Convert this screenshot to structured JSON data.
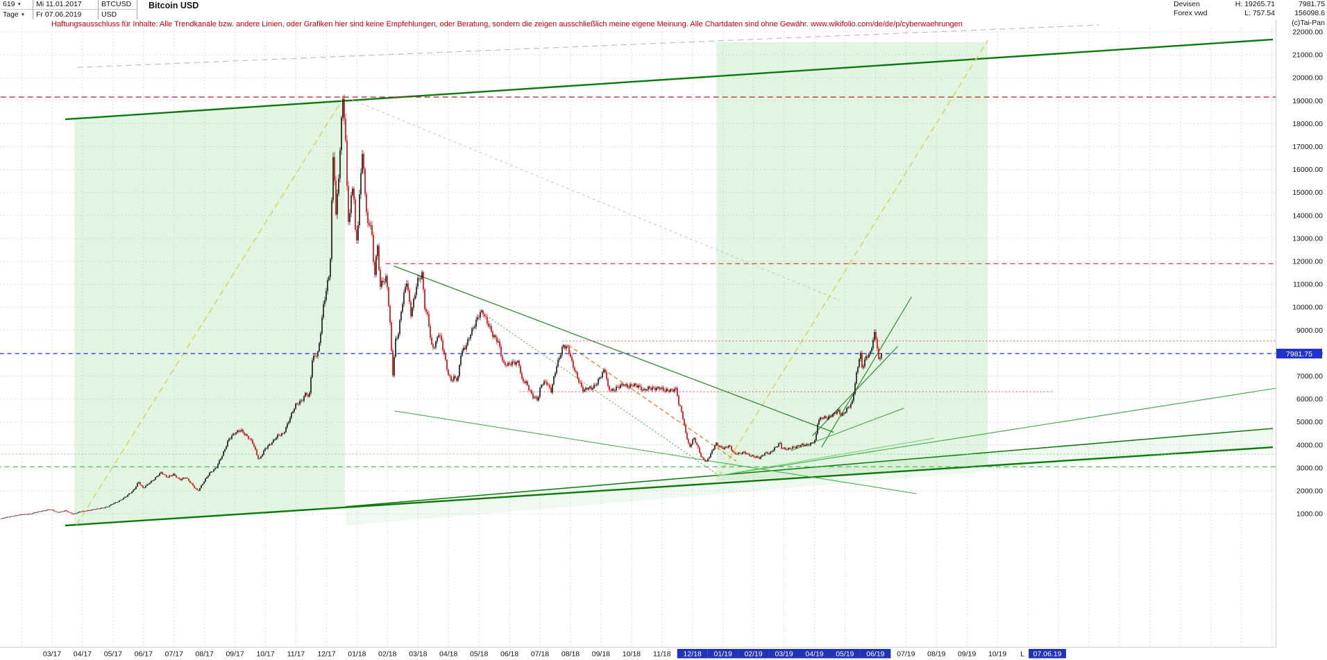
{
  "header": {
    "bar_count": "619",
    "start_day": "Mi 11.01.2017",
    "symbol": "BTCUSD",
    "title": "Bitcoin USD",
    "period": "Tage",
    "end_day": "Fr 07.06.2019",
    "currency": "USD",
    "category": "Devisen",
    "source": "Forex vwd",
    "high_label": "H: 19265.71",
    "low_label": "L: 757.54",
    "last_price": "7981.75",
    "volume": "156098.6",
    "copyright": "(c)Tai-Pan"
  },
  "disclaimer": "Haftungsausschluss für Inhalte: Alle Trendkanäle bzw. andere Linien, oder Grafiken hier sind keine Empfehlungen, oder Beratung, sondern die zeigen ausschließlich meine eigene Meinung. Alle Chartdaten sind ohne Gewähr.  www.wikifolio.com/de/de/p/cyberwaehrungen",
  "axis": {
    "x_labels": [
      {
        "label": "03/17",
        "hl": false
      },
      {
        "label": "04/17",
        "hl": false
      },
      {
        "label": "05/17",
        "hl": false
      },
      {
        "label": "06/17",
        "hl": false
      },
      {
        "label": "07/17",
        "hl": false
      },
      {
        "label": "08/17",
        "hl": false
      },
      {
        "label": "09/17",
        "hl": false
      },
      {
        "label": "10/17",
        "hl": false
      },
      {
        "label": "11/17",
        "hl": false
      },
      {
        "label": "12/17",
        "hl": false
      },
      {
        "label": "01/18",
        "hl": false
      },
      {
        "label": "02/18",
        "hl": false
      },
      {
        "label": "03/18",
        "hl": false
      },
      {
        "label": "04/18",
        "hl": false
      },
      {
        "label": "05/18",
        "hl": false
      },
      {
        "label": "06/18",
        "hl": false
      },
      {
        "label": "07/18",
        "hl": false
      },
      {
        "label": "08/18",
        "hl": false
      },
      {
        "label": "09/18",
        "hl": false
      },
      {
        "label": "10/18",
        "hl": false
      },
      {
        "label": "11/18",
        "hl": false
      },
      {
        "label": "12/18",
        "hl": true
      },
      {
        "label": "01/19",
        "hl": true
      },
      {
        "label": "02/19",
        "hl": true
      },
      {
        "label": "03/19",
        "hl": true
      },
      {
        "label": "04/19",
        "hl": true
      },
      {
        "label": "05/19",
        "hl": true
      },
      {
        "label": "06/19",
        "hl": true
      },
      {
        "label": "07/19",
        "hl": false
      },
      {
        "label": "08/19",
        "hl": false
      },
      {
        "label": "09/19",
        "hl": false
      },
      {
        "label": "10/19",
        "hl": false
      }
    ],
    "last_marker": {
      "prefix": "L",
      "date": "07.06.19"
    },
    "y_ticks": [
      22000,
      21000,
      20000,
      19000,
      18000,
      17000,
      16000,
      15000,
      14000,
      13000,
      12000,
      11000,
      10000,
      9000,
      8000,
      7000,
      6000,
      5000,
      4000,
      3000,
      2000,
      1000
    ],
    "price_badge": "7981.75"
  },
  "chart_data": {
    "type": "candlestick",
    "title": "Bitcoin USD",
    "symbol": "BTCUSD",
    "timeframe": "Tage (daily)",
    "x_range": {
      "start": "11.01.2017",
      "end": "07.06.2019",
      "bars": 619
    },
    "y_range": {
      "min_label": 1000,
      "max_label": 22000,
      "tick_step": 1000
    },
    "period_high": 19265.71,
    "period_low": 757.54,
    "last_close": 7981.75,
    "volume": 156098.6,
    "price_path_t_months_price_usd": [
      [
        0,
        790
      ],
      [
        0.35,
        900
      ],
      [
        0.7,
        965
      ],
      [
        1.0,
        1010
      ],
      [
        1.35,
        1130
      ],
      [
        1.6,
        1190
      ],
      [
        1.85,
        1060
      ],
      [
        2.1,
        1130
      ],
      [
        2.35,
        990
      ],
      [
        2.6,
        1090
      ],
      [
        2.9,
        1160
      ],
      [
        3.2,
        1220
      ],
      [
        3.5,
        1320
      ],
      [
        3.8,
        1520
      ],
      [
        4.1,
        1750
      ],
      [
        4.35,
        2050
      ],
      [
        4.5,
        2400
      ],
      [
        4.65,
        2100
      ],
      [
        4.85,
        2350
      ],
      [
        5.05,
        2550
      ],
      [
        5.25,
        2800
      ],
      [
        5.45,
        2600
      ],
      [
        5.65,
        2700
      ],
      [
        5.85,
        2500
      ],
      [
        6.05,
        2580
      ],
      [
        6.25,
        2280
      ],
      [
        6.45,
        1990
      ],
      [
        6.65,
        2400
      ],
      [
        6.85,
        2820
      ],
      [
        7.05,
        3000
      ],
      [
        7.25,
        3550
      ],
      [
        7.45,
        4250
      ],
      [
        7.65,
        4480
      ],
      [
        7.85,
        4680
      ],
      [
        8.05,
        4380
      ],
      [
        8.25,
        4080
      ],
      [
        8.45,
        3350
      ],
      [
        8.65,
        3800
      ],
      [
        8.85,
        4100
      ],
      [
        9.05,
        4380
      ],
      [
        9.25,
        4480
      ],
      [
        9.45,
        5150
      ],
      [
        9.65,
        5700
      ],
      [
        9.85,
        5950
      ],
      [
        10.0,
        6300
      ],
      [
        10.1,
        6000
      ],
      [
        10.2,
        7700
      ],
      [
        10.4,
        8100
      ],
      [
        10.55,
        9900
      ],
      [
        10.7,
        11000
      ],
      [
        10.78,
        11600
      ],
      [
        10.83,
        14000
      ],
      [
        10.87,
        16800
      ],
      [
        10.92,
        16200
      ],
      [
        10.97,
        13900
      ],
      [
        11.1,
        16400
      ],
      [
        11.2,
        19200
      ],
      [
        11.28,
        17600
      ],
      [
        11.38,
        13900
      ],
      [
        11.45,
        14100
      ],
      [
        11.5,
        15700
      ],
      [
        11.57,
        14500
      ],
      [
        11.63,
        12700
      ],
      [
        11.7,
        13400
      ],
      [
        11.83,
        17000
      ],
      [
        11.93,
        15100
      ],
      [
        12.03,
        13400
      ],
      [
        12.13,
        13700
      ],
      [
        12.23,
        11200
      ],
      [
        12.33,
        12800
      ],
      [
        12.43,
        11000
      ],
      [
        12.53,
        11150
      ],
      [
        12.63,
        11200
      ],
      [
        12.7,
        10200
      ],
      [
        12.77,
        8900
      ],
      [
        12.83,
        6950
      ],
      [
        12.93,
        8600
      ],
      [
        13.03,
        8900
      ],
      [
        13.13,
        9950
      ],
      [
        13.3,
        11200
      ],
      [
        13.43,
        9750
      ],
      [
        13.53,
        10300
      ],
      [
        13.63,
        11000
      ],
      [
        13.8,
        11450
      ],
      [
        13.9,
        9900
      ],
      [
        14.0,
        9600
      ],
      [
        14.1,
        8250
      ],
      [
        14.23,
        8250
      ],
      [
        14.33,
        8950
      ],
      [
        14.43,
        8600
      ],
      [
        14.53,
        7900
      ],
      [
        14.67,
        6950
      ],
      [
        14.77,
        6800
      ],
      [
        14.87,
        7000
      ],
      [
        14.97,
        6850
      ],
      [
        15.07,
        7950
      ],
      [
        15.23,
        8250
      ],
      [
        15.4,
        8950
      ],
      [
        15.57,
        9350
      ],
      [
        15.7,
        9700
      ],
      [
        15.8,
        9800
      ],
      [
        15.97,
        9300
      ],
      [
        16.13,
        8700
      ],
      [
        16.3,
        8500
      ],
      [
        16.47,
        7550
      ],
      [
        16.63,
        7450
      ],
      [
        16.8,
        7600
      ],
      [
        16.97,
        7650
      ],
      [
        17.07,
        6800
      ],
      [
        17.23,
        6650
      ],
      [
        17.43,
        6150
      ],
      [
        17.6,
        5950
      ],
      [
        17.7,
        6600
      ],
      [
        17.87,
        6800
      ],
      [
        18.03,
        6350
      ],
      [
        18.2,
        7350
      ],
      [
        18.43,
        8400
      ],
      [
        18.6,
        8150
      ],
      [
        18.7,
        7600
      ],
      [
        18.87,
        7050
      ],
      [
        19.1,
        6300
      ],
      [
        19.2,
        6450
      ],
      [
        19.37,
        6500
      ],
      [
        19.53,
        6700
      ],
      [
        19.7,
        7050
      ],
      [
        19.8,
        7300
      ],
      [
        19.9,
        6500
      ],
      [
        20.07,
        6350
      ],
      [
        20.23,
        6500
      ],
      [
        20.4,
        6700
      ],
      [
        20.57,
        6500
      ],
      [
        20.73,
        6600
      ],
      [
        20.9,
        6600
      ],
      [
        21.07,
        6350
      ],
      [
        21.23,
        6450
      ],
      [
        21.4,
        6500
      ],
      [
        21.57,
        6480
      ],
      [
        21.73,
        6350
      ],
      [
        21.9,
        6420
      ],
      [
        22.07,
        6400
      ],
      [
        22.15,
        6380
      ],
      [
        22.22,
        5700
      ],
      [
        22.3,
        5550
      ],
      [
        22.43,
        4650
      ],
      [
        22.57,
        3850
      ],
      [
        22.7,
        4300
      ],
      [
        22.83,
        3950
      ],
      [
        22.97,
        3450
      ],
      [
        23.13,
        3250
      ],
      [
        23.3,
        3700
      ],
      [
        23.43,
        4100
      ],
      [
        23.57,
        3900
      ],
      [
        23.7,
        3820
      ],
      [
        23.87,
        4000
      ],
      [
        24.03,
        3620
      ],
      [
        24.2,
        3600
      ],
      [
        24.37,
        3700
      ],
      [
        24.53,
        3560
      ],
      [
        24.7,
        3460
      ],
      [
        24.87,
        3450
      ],
      [
        25.03,
        3650
      ],
      [
        25.2,
        3600
      ],
      [
        25.37,
        3900
      ],
      [
        25.53,
        4100
      ],
      [
        25.6,
        3820
      ],
      [
        25.77,
        3810
      ],
      [
        25.93,
        3900
      ],
      [
        26.1,
        3920
      ],
      [
        26.27,
        4000
      ],
      [
        26.43,
        4010
      ],
      [
        26.6,
        4080
      ],
      [
        26.7,
        4180
      ],
      [
        26.78,
        5050
      ],
      [
        26.93,
        5250
      ],
      [
        27.1,
        5150
      ],
      [
        27.27,
        5300
      ],
      [
        27.43,
        5550
      ],
      [
        27.57,
        5250
      ],
      [
        27.73,
        5550
      ],
      [
        27.9,
        5850
      ],
      [
        28.03,
        7000
      ],
      [
        28.17,
        8000
      ],
      [
        28.23,
        7300
      ],
      [
        28.37,
        7900
      ],
      [
        28.5,
        8050
      ],
      [
        28.63,
        8800
      ],
      [
        28.7,
        8550
      ],
      [
        28.77,
        7650
      ],
      [
        28.83,
        7850
      ],
      [
        28.87,
        7982
      ]
    ],
    "trendlines": [
      {
        "pts": [
          2.1,
          18190,
          41.7,
          21670
        ],
        "c": "#0b7a0b",
        "d": "",
        "w": 2.4
      },
      {
        "pts": [
          2.1,
          490,
          41.7,
          3900
        ],
        "c": "#0b7a0b",
        "d": "",
        "w": 2.4
      },
      {
        "pts": [
          11.3,
          1310,
          41.7,
          4720
        ],
        "c": "#0b7a0b",
        "d": "",
        "w": 1.5
      },
      {
        "pts": [
          2.47,
          520,
          11.27,
          19230
        ],
        "c": "#d8d565",
        "d": "9,6",
        "w": 1.6
      },
      {
        "pts": [
          23.5,
          2600,
          32.35,
          21640
        ],
        "c": "#d8d565",
        "d": "9,6",
        "w": 1.6
      },
      {
        "pts": [
          12.87,
          11800,
          27.3,
          4550
        ],
        "c": "#2e8b2e",
        "d": "",
        "w": 1.3
      },
      {
        "pts": [
          12.9,
          5480,
          30.0,
          1880
        ],
        "c": "#45b04a",
        "d": "",
        "w": 1.1
      },
      {
        "pts": [
          18.6,
          8350,
          24.1,
          3300
        ],
        "c": "#e8872e",
        "d": "6,4",
        "w": 1.4
      },
      {
        "pts": [
          23.45,
          2650,
          41.8,
          6470
        ],
        "c": "#45b04a",
        "d": "",
        "w": 1.2
      },
      {
        "pts": [
          23.45,
          2650,
          30.6,
          4300
        ],
        "c": "#86d086",
        "d": "",
        "w": 1.2
      },
      {
        "pts": [
          26.9,
          3900,
          29.85,
          10460
        ],
        "c": "#2e8b2e",
        "d": "",
        "w": 1.2
      },
      {
        "pts": [
          26.6,
          4400,
          29.4,
          8300
        ],
        "c": "#2e8b2e",
        "d": "",
        "w": 1.2
      },
      {
        "pts": [
          25.9,
          3750,
          29.6,
          5600
        ],
        "c": "#45b04a",
        "d": "",
        "w": 1.1
      },
      {
        "pts": [
          2.5,
          20450,
          36.0,
          22300
        ],
        "c": "#b8b8b8",
        "d": "8,6",
        "w": 1.1
      },
      {
        "pts": [
          11.3,
          19150,
          27.5,
          10300
        ],
        "c": "#c4c4c4",
        "d": "4,4",
        "w": 1.0
      },
      {
        "pts": [
          16.0,
          9550,
          23.5,
          2700
        ],
        "c": "#45b04a",
        "d": "2,3",
        "w": 1.1
      }
    ],
    "levels": [
      {
        "p": 19160,
        "t1": -1.8,
        "t2": 42,
        "c": "#b22222",
        "d": "8,5",
        "w": 1.3
      },
      {
        "p": 11900,
        "t1": 12.6,
        "t2": 42,
        "c": "#cc3333",
        "d": "7,5",
        "w": 1.1
      },
      {
        "p": 8530,
        "t1": 18.4,
        "t2": 42,
        "c": "#e05555",
        "d": "2,3",
        "w": 1.0
      },
      {
        "p": 6320,
        "t1": 17.0,
        "t2": 34.5,
        "c": "#e05555",
        "d": "2,3",
        "w": 1.0
      },
      {
        "p": 7981.75,
        "t1": -1.8,
        "t2": 42,
        "c": "#2233cc",
        "d": "6,5",
        "w": 1.3
      },
      {
        "p": 3050,
        "t1": -1.8,
        "t2": 42,
        "c": "#45b04a",
        "d": "7,5",
        "w": 1.2
      },
      {
        "p": 3600,
        "t1": -1.8,
        "t2": 42,
        "c": "#86d086",
        "d": "2,3",
        "w": 1.0
      }
    ],
    "regions": [
      {
        "pts": [
          [
            2.4,
            18210
          ],
          [
            11.27,
            19000
          ],
          [
            11.27,
            1280
          ],
          [
            2.4,
            515
          ]
        ],
        "fill": "rgba(167,224,167,0.33)"
      },
      {
        "pts": [
          [
            23.45,
            21550
          ],
          [
            32.35,
            21550
          ],
          [
            32.35,
            3110
          ],
          [
            23.45,
            2420
          ]
        ],
        "fill": "rgba(167,224,167,0.33)"
      },
      {
        "pts": [
          [
            11.3,
            1310
          ],
          [
            41.7,
            4720
          ],
          [
            41.7,
            3900
          ],
          [
            11.3,
            490
          ]
        ],
        "fill": "rgba(167,224,167,0.18)"
      }
    ]
  },
  "colors": {
    "up_candle": "#101010",
    "down_candle": "#d40000",
    "accent_blue": "#2233cc",
    "highlight_bg": "#2233bb",
    "channel_green": "#0b7a0b",
    "grid": "#dcdcdc",
    "axis_text": "#111111",
    "disclaimer_red": "#cc0000"
  }
}
